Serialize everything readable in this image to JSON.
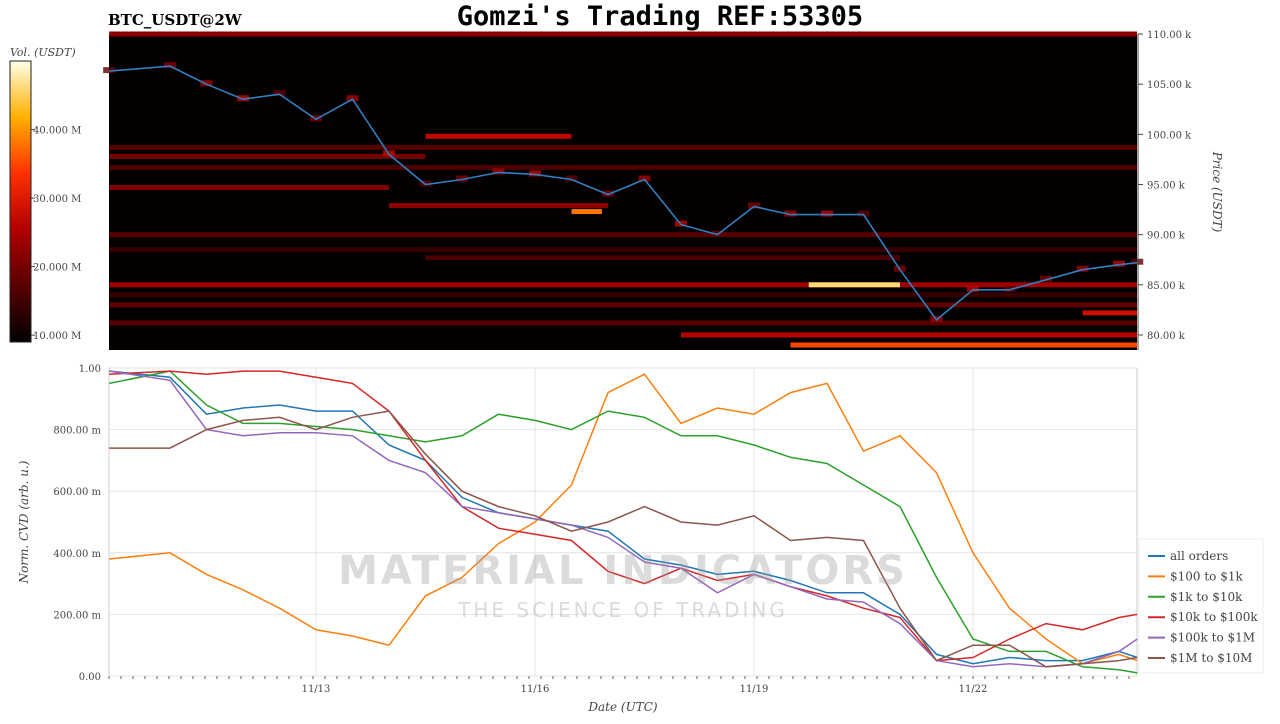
{
  "header": {
    "symbol": "BTC_USDT@2W",
    "title": "Gomzi's Trading REF:53305"
  },
  "watermark": {
    "line1": "MATERIAL INDICATORS",
    "line2": "THE SCIENCE OF TRADING"
  },
  "colors": {
    "price_line": "#2f7fc1",
    "all orders": "#1f77b4",
    "$100 to $1k": "#ff7f0e",
    "$1k to $10k": "#2ca02c",
    "$10k to $100k": "#d62728",
    "$100k to $1M": "#9467bd",
    "$1M to $10M": "#8c564b"
  },
  "chart_data": [
    {
      "type": "heatmap",
      "colorbar": {
        "label": "Vol. (USDT)",
        "ticks": [
          "10.000 M",
          "20.000 M",
          "30.000 M",
          "40.000 M"
        ],
        "tick_values": [
          10,
          20,
          30,
          40
        ],
        "range": [
          9,
          50
        ],
        "colormap": "hot"
      },
      "yaxis": {
        "label": "Price (USDT)",
        "ticks": [
          "80.00 k",
          "85.00 k",
          "90.00 k",
          "95.00 k",
          "100.00 k",
          "105.00 k",
          "110.00 k"
        ],
        "tick_values": [
          80,
          85,
          90,
          95,
          100,
          105,
          110
        ],
        "range": [
          78.5,
          110
        ]
      },
      "x": [
        "11/10 04:00",
        "11/11 00:00",
        "11/11 12:00",
        "11/12 00:00",
        "11/12 12:00",
        "11/13 00:00",
        "11/13 12:00",
        "11/14 00:00",
        "11/14 12:00",
        "11/15 00:00",
        "11/15 12:00",
        "11/16 00:00",
        "11/16 12:00",
        "11/17 00:00",
        "11/17 12:00",
        "11/18 00:00",
        "11/18 12:00",
        "11/19 00:00",
        "11/19 12:00",
        "11/20 00:00",
        "11/20 12:00",
        "11/21 00:00",
        "11/21 12:00",
        "11/22 00:00",
        "11/22 12:00",
        "11/23 00:00",
        "11/23 12:00",
        "11/24 00:00",
        "11/24 06:00"
      ],
      "price": [
        106.3,
        106.8,
        105,
        103.5,
        104,
        101.5,
        103.5,
        98,
        95,
        95.5,
        96.2,
        96,
        95.5,
        94,
        95.5,
        91,
        90,
        92.8,
        92,
        92,
        92,
        86.5,
        81.5,
        84.5,
        84.5,
        85.5,
        86.5,
        87,
        87.2
      ],
      "liquidity_bands": [
        {
          "price": 110,
          "from": "11/10 04:00",
          "to": "11/24 06:00",
          "vol": 22
        },
        {
          "price": 99.8,
          "from": "11/14 12:00",
          "to": "11/16 12:00",
          "vol": 27
        },
        {
          "price": 98.7,
          "from": "11/10 04:00",
          "to": "11/24 06:00",
          "vol": 17
        },
        {
          "price": 97.8,
          "from": "11/10 04:00",
          "to": "11/14 12:00",
          "vol": 20
        },
        {
          "price": 96.7,
          "from": "11/10 04:00",
          "to": "11/24 06:00",
          "vol": 16
        },
        {
          "price": 94.7,
          "from": "11/10 04:00",
          "to": "11/14 00:00",
          "vol": 21
        },
        {
          "price": 92.9,
          "from": "11/14 00:00",
          "to": "11/17 00:00",
          "vol": 22
        },
        {
          "price": 92.3,
          "from": "11/16 12:00",
          "to": "11/16 22:00",
          "vol": 38
        },
        {
          "price": 90.0,
          "from": "11/10 04:00",
          "to": "11/24 06:00",
          "vol": 17
        },
        {
          "price": 88.5,
          "from": "11/10 04:00",
          "to": "11/24 06:00",
          "vol": 14
        },
        {
          "price": 87.7,
          "from": "11/14 12:00",
          "to": "11/21 00:00",
          "vol": 16
        },
        {
          "price": 85.0,
          "from": "11/10 04:00",
          "to": "11/24 06:00",
          "vol": 24
        },
        {
          "price": 85.0,
          "from": "11/19 18:00",
          "to": "11/21 00:00",
          "vol": 46
        },
        {
          "price": 84.0,
          "from": "11/10 04:00",
          "to": "11/24 06:00",
          "vol": 14
        },
        {
          "price": 83.0,
          "from": "11/10 04:00",
          "to": "11/24 06:00",
          "vol": 18
        },
        {
          "price": 82.2,
          "from": "11/23 12:00",
          "to": "11/24 06:00",
          "vol": 28
        },
        {
          "price": 81.2,
          "from": "11/10 04:00",
          "to": "11/24 06:00",
          "vol": 17
        },
        {
          "price": 80.0,
          "from": "11/18 00:00",
          "to": "11/24 06:00",
          "vol": 26
        },
        {
          "price": 79.0,
          "from": "11/19 12:00",
          "to": "11/24 06:00",
          "vol": 35
        }
      ]
    },
    {
      "type": "line",
      "xlabel": "Date (UTC)",
      "ylabel": "Norm. CVD (arb. u.)",
      "xticks": [
        "11/13",
        "11/16",
        "11/19",
        "11/22"
      ],
      "yticks": [
        "0.00",
        "200.00 m",
        "400.00 m",
        "600.00 m",
        "800.00 m",
        "1.00"
      ],
      "ytick_values": [
        0,
        0.2,
        0.4,
        0.6,
        0.8,
        1.0
      ],
      "ylim": [
        0,
        1
      ],
      "grid": true,
      "legend": "right",
      "x": [
        "11/10 04:00",
        "11/11 00:00",
        "11/11 12:00",
        "11/12 00:00",
        "11/12 12:00",
        "11/13 00:00",
        "11/13 12:00",
        "11/14 00:00",
        "11/14 12:00",
        "11/15 00:00",
        "11/15 12:00",
        "11/16 00:00",
        "11/16 12:00",
        "11/17 00:00",
        "11/17 12:00",
        "11/18 00:00",
        "11/18 12:00",
        "11/19 00:00",
        "11/19 12:00",
        "11/20 00:00",
        "11/20 12:00",
        "11/21 00:00",
        "11/21 12:00",
        "11/22 00:00",
        "11/22 12:00",
        "11/23 00:00",
        "11/23 12:00",
        "11/24 00:00",
        "11/24 06:00"
      ],
      "series": [
        {
          "name": "all orders",
          "values": [
            0.99,
            0.97,
            0.85,
            0.87,
            0.88,
            0.86,
            0.86,
            0.75,
            0.7,
            0.58,
            0.53,
            0.51,
            0.49,
            0.47,
            0.38,
            0.36,
            0.33,
            0.34,
            0.31,
            0.27,
            0.27,
            0.2,
            0.07,
            0.04,
            0.06,
            0.05,
            0.05,
            0.08,
            0.06
          ]
        },
        {
          "name": "$100 to $1k",
          "values": [
            0.38,
            0.4,
            0.33,
            0.28,
            0.22,
            0.15,
            0.13,
            0.1,
            0.26,
            0.32,
            0.43,
            0.5,
            0.62,
            0.92,
            0.98,
            0.82,
            0.87,
            0.85,
            0.92,
            0.95,
            0.73,
            0.78,
            0.66,
            0.4,
            0.22,
            0.12,
            0.04,
            0.07,
            0.05
          ]
        },
        {
          "name": "$1k to $10k",
          "values": [
            0.95,
            0.99,
            0.88,
            0.82,
            0.82,
            0.81,
            0.8,
            0.78,
            0.76,
            0.78,
            0.85,
            0.83,
            0.8,
            0.86,
            0.84,
            0.78,
            0.78,
            0.75,
            0.71,
            0.69,
            0.62,
            0.55,
            0.32,
            0.12,
            0.08,
            0.08,
            0.03,
            0.02,
            0.01
          ]
        },
        {
          "name": "$10k to $100k",
          "values": [
            0.98,
            0.99,
            0.98,
            0.99,
            0.99,
            0.97,
            0.95,
            0.86,
            0.7,
            0.55,
            0.48,
            0.46,
            0.44,
            0.34,
            0.3,
            0.35,
            0.31,
            0.33,
            0.29,
            0.26,
            0.22,
            0.19,
            0.05,
            0.06,
            0.12,
            0.17,
            0.15,
            0.19,
            0.2
          ]
        },
        {
          "name": "$100k to $1M",
          "values": [
            0.99,
            0.96,
            0.8,
            0.78,
            0.79,
            0.79,
            0.78,
            0.7,
            0.66,
            0.55,
            0.53,
            0.51,
            0.49,
            0.45,
            0.37,
            0.35,
            0.27,
            0.33,
            0.29,
            0.25,
            0.24,
            0.17,
            0.05,
            0.03,
            0.04,
            0.03,
            0.04,
            0.08,
            0.12
          ]
        },
        {
          "name": "$1M to $10M",
          "values": [
            0.74,
            0.74,
            0.8,
            0.83,
            0.84,
            0.8,
            0.84,
            0.86,
            0.72,
            0.6,
            0.55,
            0.52,
            0.47,
            0.5,
            0.55,
            0.5,
            0.49,
            0.52,
            0.44,
            0.45,
            0.44,
            0.22,
            0.05,
            0.1,
            0.1,
            0.03,
            0.04,
            0.05,
            0.06
          ]
        }
      ]
    }
  ]
}
